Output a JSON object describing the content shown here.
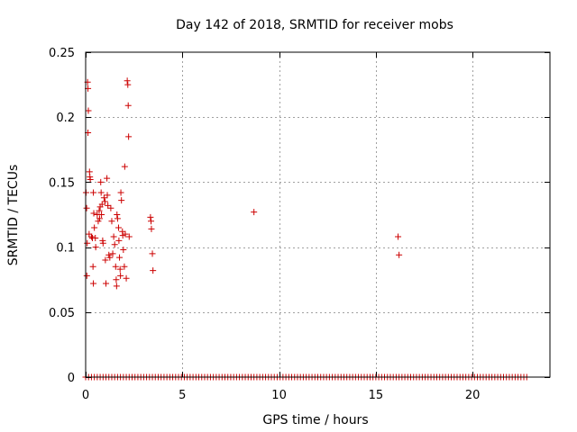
{
  "chart_data": {
    "type": "scatter",
    "title": "Day 142 of 2018, SRMTID for receiver mobs",
    "xlabel": "GPS time / hours",
    "ylabel": "SRMTID / TECUs",
    "xlim": [
      0,
      24
    ],
    "ylim": [
      0,
      0.25
    ],
    "grid": true,
    "legend": "none",
    "marker": "+",
    "marker_color": "#cc0000",
    "x_ticks": [
      {
        "value": 0,
        "label": "0"
      },
      {
        "value": 5,
        "label": "5"
      },
      {
        "value": 10,
        "label": "10"
      },
      {
        "value": 15,
        "label": "15"
      },
      {
        "value": 20,
        "label": "20"
      }
    ],
    "y_ticks": [
      {
        "value": 0,
        "label": "0"
      },
      {
        "value": 0.05,
        "label": "0.05"
      },
      {
        "value": 0.1,
        "label": "0.1"
      },
      {
        "value": 0.15,
        "label": "0.15"
      },
      {
        "value": 0.2,
        "label": "0.2"
      },
      {
        "value": 0.25,
        "label": "0.25"
      }
    ],
    "series": [
      {
        "name": "SRMTID",
        "points": [
          [
            0.1,
            0.227
          ],
          [
            0.12,
            0.222
          ],
          [
            0.14,
            0.205
          ],
          [
            0.12,
            0.188
          ],
          [
            0.2,
            0.158
          ],
          [
            0.22,
            0.154
          ],
          [
            0.24,
            0.152
          ],
          [
            0.02,
            0.142
          ],
          [
            0.05,
            0.13
          ],
          [
            0.08,
            0.103
          ],
          [
            0.06,
            0.078
          ],
          [
            0.18,
            0.11
          ],
          [
            0.3,
            0.108
          ],
          [
            0.35,
            0.107
          ],
          [
            0.4,
            0.142
          ],
          [
            0.42,
            0.126
          ],
          [
            0.45,
            0.115
          ],
          [
            0.5,
            0.107
          ],
          [
            0.52,
            0.1
          ],
          [
            0.38,
            0.085
          ],
          [
            0.4,
            0.072
          ],
          [
            0.6,
            0.125
          ],
          [
            0.65,
            0.12
          ],
          [
            0.7,
            0.128
          ],
          [
            0.72,
            0.122
          ],
          [
            0.75,
            0.131
          ],
          [
            0.78,
            0.15
          ],
          [
            0.8,
            0.142
          ],
          [
            0.82,
            0.125
          ],
          [
            0.85,
            0.133
          ],
          [
            0.88,
            0.105
          ],
          [
            0.9,
            0.103
          ],
          [
            0.95,
            0.138
          ],
          [
            1.0,
            0.135
          ],
          [
            1.02,
            0.09
          ],
          [
            1.05,
            0.072
          ],
          [
            1.1,
            0.153
          ],
          [
            1.12,
            0.14
          ],
          [
            1.15,
            0.132
          ],
          [
            1.2,
            0.094
          ],
          [
            1.25,
            0.092
          ],
          [
            1.3,
            0.13
          ],
          [
            1.35,
            0.12
          ],
          [
            1.4,
            0.095
          ],
          [
            1.45,
            0.108
          ],
          [
            1.5,
            0.102
          ],
          [
            1.55,
            0.085
          ],
          [
            1.58,
            0.075
          ],
          [
            1.6,
            0.07
          ],
          [
            1.62,
            0.125
          ],
          [
            1.65,
            0.122
          ],
          [
            1.7,
            0.115
          ],
          [
            1.72,
            0.105
          ],
          [
            1.75,
            0.092
          ],
          [
            1.78,
            0.083
          ],
          [
            1.8,
            0.078
          ],
          [
            1.82,
            0.142
          ],
          [
            1.85,
            0.136
          ],
          [
            1.9,
            0.112
          ],
          [
            1.92,
            0.109
          ],
          [
            1.95,
            0.098
          ],
          [
            2.0,
            0.085
          ],
          [
            2.02,
            0.162
          ],
          [
            2.05,
            0.11
          ],
          [
            2.1,
            0.076
          ],
          [
            2.15,
            0.228
          ],
          [
            2.18,
            0.225
          ],
          [
            2.2,
            0.209
          ],
          [
            2.22,
            0.185
          ],
          [
            2.25,
            0.108
          ],
          [
            3.35,
            0.123
          ],
          [
            3.38,
            0.12
          ],
          [
            3.4,
            0.114
          ],
          [
            3.45,
            0.095
          ],
          [
            3.48,
            0.082
          ],
          [
            8.7,
            0.127
          ],
          [
            16.15,
            0.108
          ],
          [
            16.2,
            0.094
          ]
        ],
        "zero_band": {
          "y": 0,
          "x_start": 0,
          "x_end": 22.8,
          "step": 0.15
        }
      }
    ]
  }
}
